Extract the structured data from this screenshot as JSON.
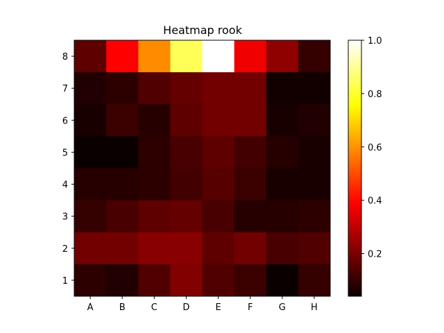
{
  "chart_data": {
    "type": "heatmap",
    "title": "Heatmap rook",
    "xlabel": "",
    "ylabel": "",
    "x_categories": [
      "A",
      "B",
      "C",
      "D",
      "E",
      "F",
      "G",
      "H"
    ],
    "y_categories": [
      "8",
      "7",
      "6",
      "5",
      "4",
      "3",
      "2",
      "1"
    ],
    "values": [
      [
        0.16,
        0.39,
        0.59,
        0.84,
        1.0,
        0.37,
        0.23,
        0.1
      ],
      [
        0.07,
        0.09,
        0.14,
        0.17,
        0.19,
        0.19,
        0.05,
        0.05
      ],
      [
        0.06,
        0.11,
        0.08,
        0.16,
        0.19,
        0.19,
        0.06,
        0.07
      ],
      [
        0.04,
        0.03,
        0.09,
        0.13,
        0.16,
        0.12,
        0.08,
        0.06
      ],
      [
        0.08,
        0.08,
        0.09,
        0.12,
        0.15,
        0.11,
        0.06,
        0.06
      ],
      [
        0.1,
        0.13,
        0.16,
        0.17,
        0.13,
        0.08,
        0.08,
        0.09
      ],
      [
        0.19,
        0.19,
        0.22,
        0.22,
        0.16,
        0.19,
        0.13,
        0.14
      ],
      [
        0.09,
        0.07,
        0.14,
        0.21,
        0.14,
        0.11,
        0.03,
        0.1
      ]
    ],
    "colormap": "hot",
    "colorbar": {
      "range": [
        0.04,
        1.0
      ],
      "ticks": [
        0.2,
        0.4,
        0.6,
        0.8,
        1.0
      ],
      "tick_labels": [
        "0.2",
        "0.4",
        "0.6",
        "0.8",
        "1.0"
      ]
    },
    "grid": false
  }
}
